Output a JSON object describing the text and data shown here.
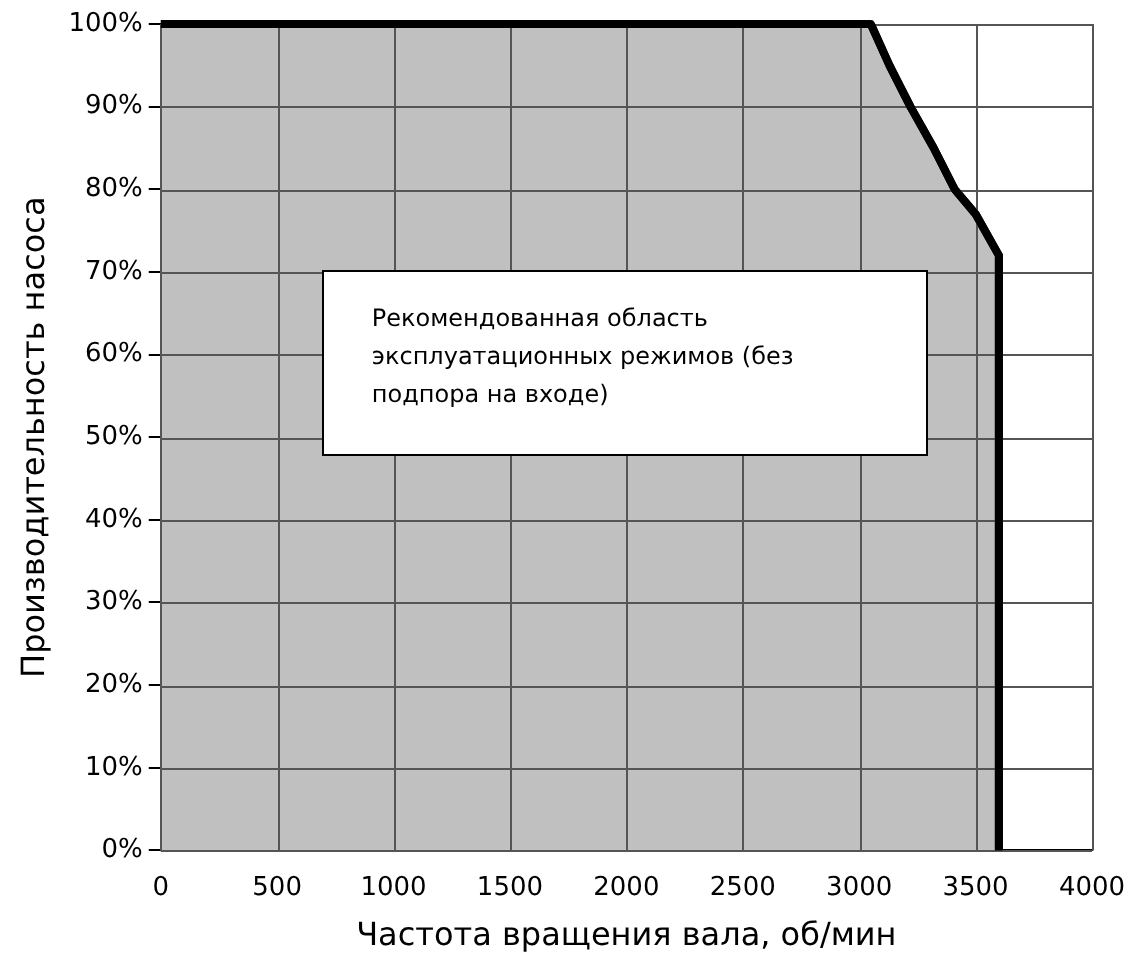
{
  "chart_data": {
    "type": "area",
    "xlabel": "Частота вращения вала, об/мин",
    "ylabel": "Производительность насоса",
    "x": [
      0,
      3050,
      3130,
      3220,
      3320,
      3410,
      3500,
      3600,
      3600
    ],
    "series": [
      {
        "color": "#c0c0c0",
        "values": [
          100,
          100,
          95,
          90,
          85,
          80,
          77,
          72,
          0
        ]
      }
    ],
    "xlim": [
      0,
      4000
    ],
    "xticks": [
      0,
      500,
      1000,
      1500,
      2000,
      2500,
      3000,
      3500,
      4000
    ],
    "ylim": [
      0,
      100
    ],
    "yticks": [
      {
        "value": 0,
        "label": "0%"
      },
      {
        "value": 10,
        "label": "10%"
      },
      {
        "value": 20,
        "label": "20%"
      },
      {
        "value": 30,
        "label": "30%"
      },
      {
        "value": 40,
        "label": "40%"
      },
      {
        "value": 50,
        "label": "50%"
      },
      {
        "value": 60,
        "label": "60%"
      },
      {
        "value": 70,
        "label": "70%"
      },
      {
        "value": 80,
        "label": "80%"
      },
      {
        "value": 90,
        "label": "90%"
      },
      {
        "value": 100,
        "label": "100%"
      }
    ],
    "grid": true,
    "legend": false,
    "annotations": [
      "Рекомендованная область эксплуатационных режимов (без подпора на входе)"
    ]
  }
}
